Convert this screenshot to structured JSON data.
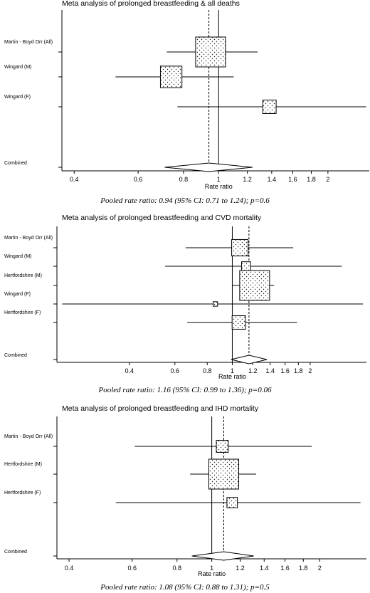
{
  "chart_data": [
    {
      "type": "forest",
      "title": "Meta analysis of prolonged breastfeeding & all deaths",
      "xlabel": "Rate ratio",
      "x_scale": "log",
      "xticks": [
        "0.4",
        "0.6",
        "0.8",
        "1",
        "1.2",
        "1.4",
        "1.6",
        "1.8",
        "2"
      ],
      "xlim": [
        0.37,
        2.6
      ],
      "reference_line": 1,
      "pooled_line": 0.94,
      "studies": [
        {
          "label": "Martin - Boyd Orr (All)",
          "estimate": 0.95,
          "ci": [
            0.72,
            1.28
          ],
          "weight": 1.0
        },
        {
          "label": "Wingard (M)",
          "estimate": 0.74,
          "ci": [
            0.52,
            1.1
          ],
          "weight": 0.72
        },
        {
          "label": "Wingard (F)",
          "estimate": 1.38,
          "ci": [
            0.77,
            2.55
          ],
          "weight": 0.45
        }
      ],
      "combined": {
        "label": "Combined",
        "estimate": 0.94,
        "ci": [
          0.71,
          1.24
        ]
      },
      "caption": "Pooled rate ratio: 0.94 (95% CI: 0.71 to 1.24); p=0.6"
    },
    {
      "type": "forest",
      "title": "Meta analysis of prolonged breastfeeding and CVD mortality",
      "xlabel": "Rate ratio",
      "x_scale": "log",
      "xticks": [
        "0.4",
        "0.6",
        "0.8",
        "1",
        "1.2",
        "1.4",
        "1.6",
        "1.8",
        "2"
      ],
      "xlim": [
        0.21,
        3.3
      ],
      "reference_line": 1,
      "pooled_line": 1.16,
      "studies": [
        {
          "label": "Martin - Boyd Orr (All)",
          "estimate": 1.07,
          "ci": [
            0.66,
            1.72
          ],
          "weight": 0.55
        },
        {
          "label": "Wingard (M)",
          "estimate": 1.13,
          "ci": [
            0.55,
            2.65
          ],
          "weight": 0.3
        },
        {
          "label": "Hertfordshire (M)",
          "estimate": 1.22,
          "ci": [
            1.0,
            1.45
          ],
          "weight": 1.0
        },
        {
          "label": "Wingard (F)",
          "estimate": 0.86,
          "ci": [
            0.22,
            3.2
          ],
          "weight": 0.15
        },
        {
          "label": "Hertfordshire (F)",
          "estimate": 1.06,
          "ci": [
            0.67,
            1.78
          ],
          "weight": 0.45
        }
      ],
      "combined": {
        "label": "Combined",
        "estimate": 1.16,
        "ci": [
          0.99,
          1.36
        ]
      },
      "caption": "Pooled rate ratio: 1.16 (95% CI: 0.99 to 1.36); p=0.06"
    },
    {
      "type": "forest",
      "title": "Meta analysis of prolonged breastfeeding and IHD mortality",
      "xlabel": "Rate ratio",
      "x_scale": "log",
      "xticks": [
        "0.4",
        "0.6",
        "0.8",
        "1",
        "1.2",
        "1.4",
        "1.6",
        "1.8",
        "2"
      ],
      "xlim": [
        0.37,
        2.7
      ],
      "reference_line": 1,
      "pooled_line": 1.08,
      "studies": [
        {
          "label": "Martin - Boyd Orr (All)",
          "estimate": 1.07,
          "ci": [
            0.61,
            1.9
          ],
          "weight": 0.4
        },
        {
          "label": "Hertfordshire (M)",
          "estimate": 1.08,
          "ci": [
            0.87,
            1.33
          ],
          "weight": 1.0
        },
        {
          "label": "Hertfordshire (F)",
          "estimate": 1.14,
          "ci": [
            0.54,
            2.6
          ],
          "weight": 0.35
        }
      ],
      "combined": {
        "label": "Combined",
        "estimate": 1.08,
        "ci": [
          0.88,
          1.31
        ]
      },
      "caption": "Pooled rate ratio: 1.08 (95% CI: 0.88 to 1.31); p=0.5"
    }
  ]
}
